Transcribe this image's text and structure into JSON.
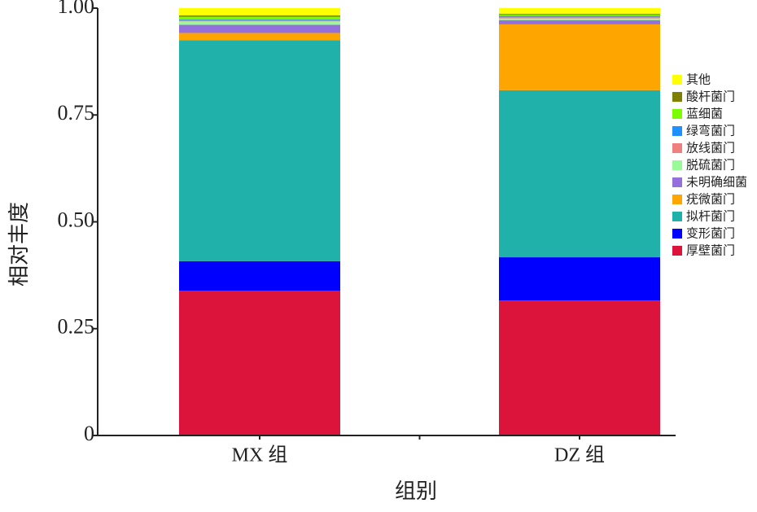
{
  "chart_data": {
    "type": "stacked_bar",
    "categories": [
      "MX 组",
      "DZ 组"
    ],
    "xlabel": "组别",
    "ylabel": "相对丰度",
    "ylim": [
      0,
      1
    ],
    "yticks": [
      0,
      0.25,
      {
        "value": 0.5,
        "label": "0.50"
      },
      0.75,
      {
        "value": 1,
        "label": "1.00"
      }
    ],
    "series": [
      {
        "name": "厚壁菌门",
        "color": "#dc143c",
        "values": [
          0.339,
          0.316
        ]
      },
      {
        "name": "变形菌门",
        "color": "#0000ff",
        "values": [
          0.069,
          0.101
        ]
      },
      {
        "name": "拟杆菌门",
        "color": "#20b2aa",
        "values": [
          0.517,
          0.391
        ]
      },
      {
        "name": "疣微菌门",
        "color": "#ffa500",
        "values": [
          0.017,
          0.154
        ]
      },
      {
        "name": "未明确细菌",
        "color": "#9370db",
        "values": [
          0.019,
          0.01
        ]
      },
      {
        "name": "脱硫菌门",
        "color": "#98fb98",
        "values": [
          0.008,
          0.004
        ]
      },
      {
        "name": "放线菌门",
        "color": "#f08080",
        "values": [
          0.003,
          0.004
        ]
      },
      {
        "name": "绿弯菌门",
        "color": "#1e90ff",
        "values": [
          0.002,
          0.002
        ]
      },
      {
        "name": "蓝细菌",
        "color": "#7cfc00",
        "values": [
          0.006,
          0.003
        ]
      },
      {
        "name": "酸杆菌门",
        "color": "#808000",
        "values": [
          0.003,
          0.002
        ]
      },
      {
        "name": "其他",
        "color": "#ffff00",
        "values": [
          0.017,
          0.013
        ]
      }
    ]
  }
}
